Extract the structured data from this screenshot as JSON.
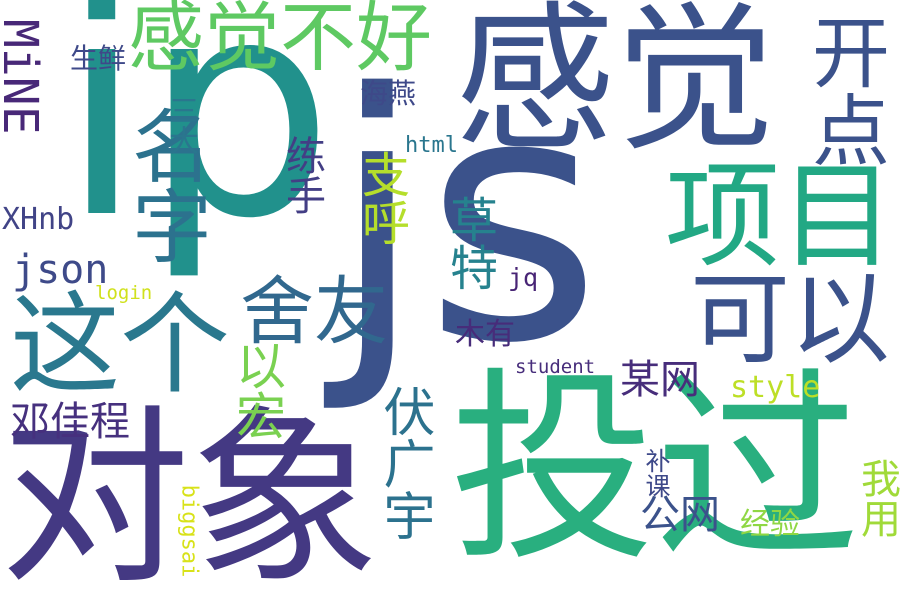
{
  "words": [
    {
      "text": "ip",
      "color": "#21918c"
    },
    {
      "text": "js",
      "color": "#3b528b"
    },
    {
      "text": "感觉",
      "color": "#3b528b"
    },
    {
      "text": "投过",
      "color": "#29af7f"
    },
    {
      "text": "对象",
      "color": "#443983"
    },
    {
      "text": "感觉不好",
      "color": "#5ec962"
    },
    {
      "text": "项目",
      "color": "#22a884"
    },
    {
      "text": "这个",
      "color": "#2a788e"
    },
    {
      "text": "可以",
      "color": "#3b528b"
    },
    {
      "text": "舍友",
      "color": "#31688e"
    },
    {
      "text": "名字",
      "color": "#2c728e"
    },
    {
      "text": "开点",
      "color": "#3b528b"
    },
    {
      "text": "MiNE",
      "color": "#482878"
    },
    {
      "text": "以宏",
      "color": "#7ad151"
    },
    {
      "text": "支呼",
      "color": "#b5de2b"
    },
    {
      "text": "草特",
      "color": "#26828e"
    },
    {
      "text": "伏广宇",
      "color": "#2c728e"
    },
    {
      "text": "json",
      "color": "#3e4a89"
    },
    {
      "text": "某网",
      "color": "#472d7b"
    },
    {
      "text": "木有",
      "color": "#472c7a"
    },
    {
      "text": "邓佳程",
      "color": "#46307e"
    },
    {
      "text": "练手",
      "color": "#433e85"
    },
    {
      "text": "style",
      "color": "#bddf26"
    },
    {
      "text": "我用",
      "color": "#a0da39"
    },
    {
      "text": "student",
      "color": "#472d7b"
    },
    {
      "text": "公网",
      "color": "#3b528b"
    },
    {
      "text": "经验",
      "color": "#8fd744"
    },
    {
      "text": "biggsai",
      "color": "#d8e219"
    },
    {
      "text": "XHnb",
      "color": "#414487"
    },
    {
      "text": "三大",
      "color": "#2a768e"
    },
    {
      "text": "生鲜",
      "color": "#3e4989"
    },
    {
      "text": "海燕",
      "color": "#3e4989"
    },
    {
      "text": "html",
      "color": "#2a768e"
    },
    {
      "text": "jq",
      "color": "#482475"
    },
    {
      "text": "login",
      "color": "#d0e11c"
    },
    {
      "text": "补课",
      "color": "#3e4989"
    }
  ]
}
